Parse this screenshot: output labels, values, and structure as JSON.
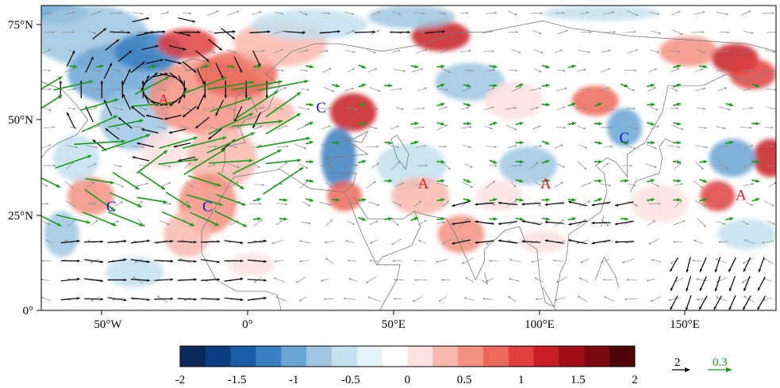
{
  "map": {
    "lat_ticks": [
      "75°N",
      "50°N",
      "25°N",
      "0°"
    ],
    "lon_ticks": [
      "50°W",
      "0°",
      "50°E",
      "100°E",
      "150°E"
    ],
    "lon_range": [
      -72,
      180
    ],
    "lat_range": [
      0,
      80
    ],
    "markers": [
      {
        "text": "A",
        "color": "#e01b1b",
        "lon": -30,
        "lat": 54
      },
      {
        "text": "C",
        "color": "#1515d8",
        "lon": 24,
        "lat": 52
      },
      {
        "text": "C",
        "color": "#1515d8",
        "lon": -48,
        "lat": 26
      },
      {
        "text": "C",
        "color": "#1515d8",
        "lon": -15,
        "lat": 26
      },
      {
        "text": "A",
        "color": "#e01b1b",
        "lon": 59,
        "lat": 32
      },
      {
        "text": "A",
        "color": "#e01b1b",
        "lon": 101,
        "lat": 32
      },
      {
        "text": "C",
        "color": "#1515d8",
        "lon": 128,
        "lat": 44
      },
      {
        "text": "A",
        "color": "#e01b1b",
        "lon": 168,
        "lat": 29
      }
    ]
  },
  "colorbar": {
    "tick_labels": [
      "-2",
      "-1.5",
      "-1",
      "-0.5",
      "0",
      "0.5",
      "1",
      "1.5",
      "2"
    ],
    "colors": [
      "#0b2a5a",
      "#0d3d80",
      "#1a5ea8",
      "#3a7fc0",
      "#6aa5d3",
      "#9ec6e2",
      "#c3e0ee",
      "#e4f3fa",
      "#ffffff",
      "#fde0e0",
      "#f8b8ae",
      "#f39080",
      "#ec6a5a",
      "#e04040",
      "#c81e24",
      "#a00f18",
      "#7a0a10",
      "#4e0508"
    ]
  },
  "reference_vectors": [
    {
      "label": "2",
      "color": "#000000"
    },
    {
      "label": "0.3",
      "color": "#1a9a1a"
    }
  ],
  "colors": {
    "black_vectors": "#000000",
    "green_vectors": "#1a9a1a",
    "grey_vectors": "#8a8a8a",
    "coast": "#7a7a7a"
  }
}
